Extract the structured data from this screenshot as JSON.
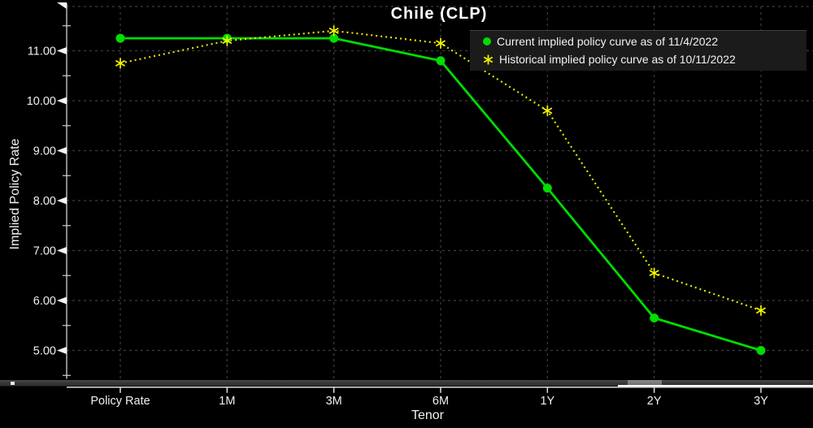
{
  "chart_data": {
    "type": "line",
    "title": "Chile (CLP)",
    "xlabel": "Tenor",
    "ylabel": "Implied Policy Rate",
    "categories": [
      "Policy Rate",
      "1M",
      "3M",
      "6M",
      "1Y",
      "2Y",
      "3Y"
    ],
    "series": [
      {
        "name": "Current implied policy curve as of 11/4/2022",
        "color": "#00dc00",
        "marker": "circle",
        "line_style": "solid",
        "values": [
          11.25,
          11.25,
          11.25,
          10.8,
          8.25,
          5.65,
          5.0
        ]
      },
      {
        "name": "Historical implied policy curve as of 10/11/2022",
        "color": "#e4e400",
        "marker": "asterisk",
        "line_style": "dotted",
        "values": [
          10.75,
          11.2,
          11.4,
          11.15,
          9.8,
          6.55,
          5.8
        ]
      }
    ],
    "y_ticks": [
      5,
      6,
      7,
      8,
      9,
      10,
      11
    ],
    "y_tick_labels": [
      "5.00",
      "6.00",
      "7.00",
      "8.00",
      "9.00",
      "10.00",
      "11.00"
    ],
    "ylim": [
      4.4,
      11.9
    ],
    "grid": true,
    "legend_position": "top-right"
  },
  "colors": {
    "background": "#000000",
    "grid": "#3d3d3d",
    "axis": "#ededed",
    "text": "#f0f0f0",
    "legend_background": "#1b1b1b"
  }
}
